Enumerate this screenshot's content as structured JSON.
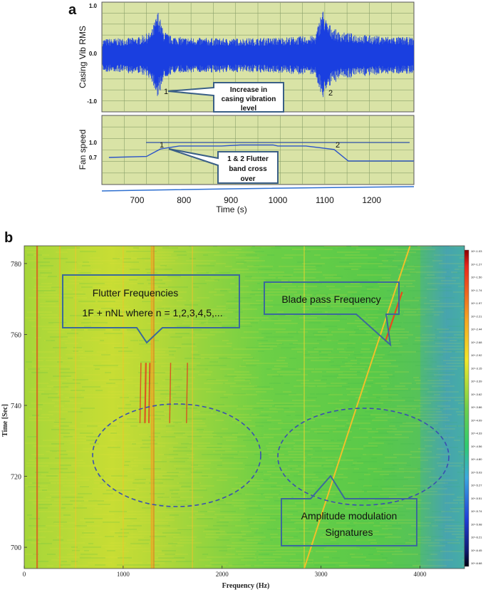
{
  "panel_a": {
    "letter": "a",
    "top_chart": {
      "ylabel": "Casing Vib RMS",
      "yticks": [
        "1.0",
        "0.0",
        "-1.0"
      ],
      "callout": [
        "Increase in",
        "casing vibration",
        "level"
      ],
      "marks": [
        "1",
        "2"
      ]
    },
    "bottom_chart": {
      "ylabel": "Fan speed",
      "yticks": [
        "1.0",
        "0.7"
      ],
      "callout": [
        "1 & 2 Flutter",
        "band cross",
        "over"
      ],
      "marks": [
        "1",
        "2"
      ]
    },
    "xticks": [
      "700",
      "800",
      "900",
      "1000",
      "1100",
      "1200"
    ],
    "xlabel": "Time (s)"
  },
  "panel_b": {
    "letter": "b",
    "ylabel": "Time [Sec]",
    "yticks": [
      "780",
      "760",
      "740",
      "720",
      "700"
    ],
    "xticks": [
      "0",
      "1000",
      "2000",
      "3000",
      "4000"
    ],
    "xlabel": "Frequency (Hz)",
    "callouts": {
      "flutter": [
        "Flutter Frequencies",
        "1F + nNL where n = 1,2,3,4,5,..."
      ],
      "blade": [
        "Blade pass Frequency"
      ],
      "amplitude": [
        "Amplitude modulation",
        "Signatures"
      ]
    },
    "colorbar_labels": [
      "10^-1.03",
      "10^-1.27",
      "10^-1.50",
      "10^-1.74",
      "10^-1.97",
      "10^-2.21",
      "10^-2.44",
      "10^-2.68",
      "10^-2.92",
      "10^-3.15",
      "10^-3.39",
      "10^-3.62",
      "10^-3.86",
      "10^-4.09",
      "10^-4.33",
      "10^-4.56",
      "10^-4.80",
      "10^-5.03",
      "10^-5.27",
      "10^-5.51",
      "10^-5.74",
      "10^-5.98",
      "10^-6.21",
      "10^-6.45",
      "10^-6.68"
    ]
  },
  "chart_data": [
    {
      "type": "line",
      "ylabel": "Casing Vib RMS",
      "xlabel": "Time (s)",
      "xlim": [
        625,
        1290
      ],
      "ylim": [
        -1.0,
        1.0
      ],
      "series": [
        {
          "x": [
            625,
            700,
            730,
            745,
            755,
            770,
            800,
            900,
            1000,
            1080,
            1095,
            1105,
            1130,
            1200,
            1290
          ],
          "values": [
            0.35,
            0.38,
            0.5,
            0.95,
            0.55,
            0.42,
            0.38,
            0.36,
            0.38,
            0.42,
            1.0,
            0.7,
            0.5,
            0.42,
            0.38
          ]
        }
      ]
    },
    {
      "type": "line",
      "ylabel": "Fan speed",
      "xlabel": "Time (s)",
      "xlim": [
        625,
        1290
      ],
      "ylim": [
        0.5,
        1.1
      ],
      "series": [
        {
          "x": [
            640,
            720,
            750,
            790,
            880,
            920,
            990,
            1000,
            1060,
            1120,
            1150,
            1290
          ],
          "values": [
            0.7,
            0.72,
            0.87,
            0.93,
            0.93,
            0.95,
            0.95,
            0.93,
            0.93,
            0.86,
            0.63,
            0.63
          ]
        }
      ]
    },
    {
      "type": "heatmap",
      "xlabel": "Frequency (Hz)",
      "ylabel": "Time [Sec]",
      "xlim": [
        0,
        4450
      ],
      "ylim": [
        694,
        785
      ],
      "annotations": [
        "Flutter Frequencies",
        "1F + nNL where n = 1,2,3,4,5,...",
        "Blade pass Frequency",
        "Amplitude modulation",
        "Signatures"
      ]
    }
  ]
}
